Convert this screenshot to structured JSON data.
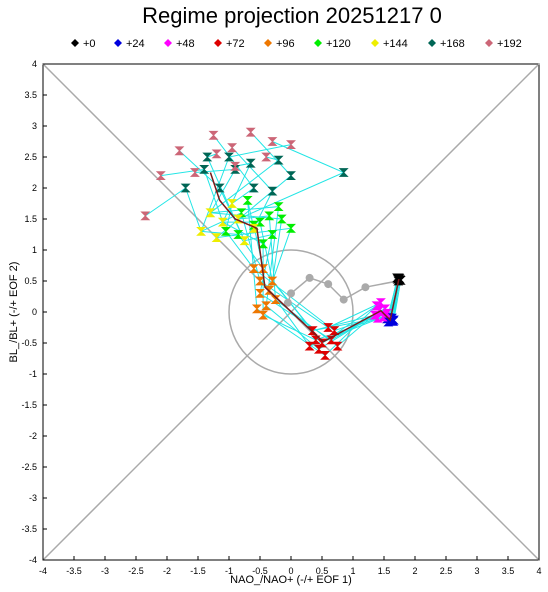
{
  "chart_data": {
    "type": "scatter",
    "title": "Regime projection 20251217 0",
    "xlabel": "NAO_/NAO+ (-/+ EOF 1)",
    "ylabel": "BL_/BL+ (-/+ EOF 2)",
    "xlim": [
      -4,
      4
    ],
    "ylim": [
      -4,
      4
    ],
    "x_ticks": [
      "-4",
      "-3.5",
      "-3",
      "-2.5",
      "-2",
      "-1.5",
      "-1",
      "-0.5",
      "0",
      "0.5",
      "1",
      "1.5",
      "2",
      "2.5",
      "3",
      "3.5",
      "4"
    ],
    "y_ticks": [
      "-4",
      "-3.5",
      "-3",
      "-2.5",
      "-2",
      "-1.5",
      "-1",
      "-0.5",
      "0",
      "0.5",
      "1",
      "1.5",
      "2",
      "2.5",
      "3",
      "3.5",
      "4"
    ],
    "legend_position": "top",
    "series": [
      {
        "name": "+0",
        "color": "#000000",
        "marker": "diamond",
        "points": [
          [
            1.72,
            0.53
          ],
          [
            1.74,
            0.55
          ],
          [
            1.76,
            0.52
          ],
          [
            1.73,
            0.5
          ],
          [
            1.75,
            0.54
          ],
          [
            1.71,
            0.55
          ],
          [
            1.77,
            0.51
          ]
        ]
      },
      {
        "name": "+24",
        "color": "#0000dd",
        "marker": "diamond",
        "points": [
          [
            1.6,
            -0.13
          ],
          [
            1.63,
            -0.1
          ],
          [
            1.57,
            -0.16
          ],
          [
            1.65,
            -0.15
          ],
          [
            1.61,
            -0.12
          ],
          [
            1.58,
            -0.09
          ],
          [
            1.66,
            -0.13
          ],
          [
            1.55,
            -0.11
          ]
        ]
      },
      {
        "name": "+48",
        "color": "#ff00ff",
        "marker": "diamond",
        "points": [
          [
            1.45,
            0.15
          ],
          [
            1.4,
            -0.1
          ],
          [
            1.52,
            0.05
          ],
          [
            1.35,
            -0.05
          ],
          [
            1.55,
            -0.02
          ],
          [
            1.38,
            0.1
          ],
          [
            1.48,
            -0.08
          ],
          [
            1.42,
            0.02
          ]
        ]
      },
      {
        "name": "+72",
        "color": "#dd0000",
        "marker": "diamond",
        "points": [
          [
            0.5,
            -0.5
          ],
          [
            0.35,
            -0.3
          ],
          [
            0.65,
            -0.45
          ],
          [
            0.45,
            -0.6
          ],
          [
            0.7,
            -0.3
          ],
          [
            0.55,
            -0.7
          ],
          [
            0.3,
            -0.55
          ],
          [
            0.75,
            -0.55
          ],
          [
            0.6,
            -0.25
          ],
          [
            0.4,
            -0.45
          ]
        ]
      },
      {
        "name": "+96",
        "color": "#ee7700",
        "marker": "diamond",
        "points": [
          [
            -0.45,
            0.7
          ],
          [
            -0.3,
            0.5
          ],
          [
            -0.5,
            0.3
          ],
          [
            -0.4,
            0.1
          ],
          [
            -0.6,
            0.7
          ],
          [
            -0.55,
            0.05
          ],
          [
            -0.35,
            0.35
          ],
          [
            -0.25,
            0.2
          ],
          [
            -0.5,
            0.5
          ],
          [
            -0.45,
            -0.05
          ]
        ]
      },
      {
        "name": "+120",
        "color": "#00ee00",
        "marker": "diamond",
        "points": [
          [
            -0.85,
            1.25
          ],
          [
            -0.5,
            1.45
          ],
          [
            -0.3,
            1.25
          ],
          [
            -0.2,
            1.7
          ],
          [
            -1.05,
            1.3
          ],
          [
            -0.7,
            1.8
          ],
          [
            0.0,
            1.35
          ],
          [
            -0.35,
            1.55
          ],
          [
            -0.8,
            1.6
          ],
          [
            -0.45,
            1.1
          ],
          [
            -0.6,
            1.4
          ],
          [
            -0.15,
            1.5
          ]
        ]
      },
      {
        "name": "+144",
        "color": "#eeee00",
        "marker": "diamond",
        "points": [
          [
            -1.45,
            1.3
          ],
          [
            -1.1,
            1.45
          ],
          [
            -0.75,
            1.15
          ],
          [
            -1.3,
            1.6
          ],
          [
            -0.95,
            1.75
          ],
          [
            -0.6,
            1.35
          ],
          [
            -1.2,
            1.2
          ],
          [
            -0.85,
            1.5
          ]
        ]
      },
      {
        "name": "+168",
        "color": "#006655",
        "marker": "diamond",
        "points": [
          [
            -1.7,
            2.0
          ],
          [
            -1.4,
            2.3
          ],
          [
            -1.15,
            2.0
          ],
          [
            -0.9,
            2.3
          ],
          [
            -0.6,
            2.0
          ],
          [
            -0.3,
            1.95
          ],
          [
            0.0,
            2.2
          ],
          [
            0.85,
            2.25
          ],
          [
            -1.0,
            2.5
          ],
          [
            -0.65,
            2.4
          ],
          [
            -1.35,
            2.5
          ],
          [
            -0.2,
            2.45
          ]
        ]
      },
      {
        "name": "+192",
        "color": "#cc6677",
        "marker": "diamond",
        "points": [
          [
            -2.35,
            1.55
          ],
          [
            -2.1,
            2.2
          ],
          [
            -1.8,
            2.6
          ],
          [
            -1.55,
            2.25
          ],
          [
            -1.25,
            2.85
          ],
          [
            -0.95,
            2.65
          ],
          [
            -0.65,
            2.9
          ],
          [
            -0.3,
            2.75
          ],
          [
            0.0,
            2.7
          ],
          [
            -0.9,
            2.35
          ],
          [
            -1.2,
            2.55
          ],
          [
            -0.4,
            2.5
          ]
        ]
      }
    ],
    "mean_track": [
      [
        1.74,
        0.53
      ],
      [
        1.6,
        -0.13
      ],
      [
        1.45,
        0.02
      ],
      [
        0.52,
        -0.48
      ],
      [
        -0.42,
        0.4
      ],
      [
        -0.55,
        1.35
      ],
      [
        -0.9,
        1.5
      ],
      [
        -1.15,
        1.8
      ],
      [
        -1.3,
        2.25
      ]
    ],
    "grey_track": [
      [
        1.72,
        0.5
      ],
      [
        1.2,
        0.4
      ],
      [
        0.85,
        0.2
      ],
      [
        0.6,
        0.45
      ],
      [
        0.3,
        0.55
      ],
      [
        0.0,
        0.3
      ],
      [
        -0.05,
        0.15
      ]
    ],
    "reference_circle_radius": 1.0,
    "grid": false
  }
}
